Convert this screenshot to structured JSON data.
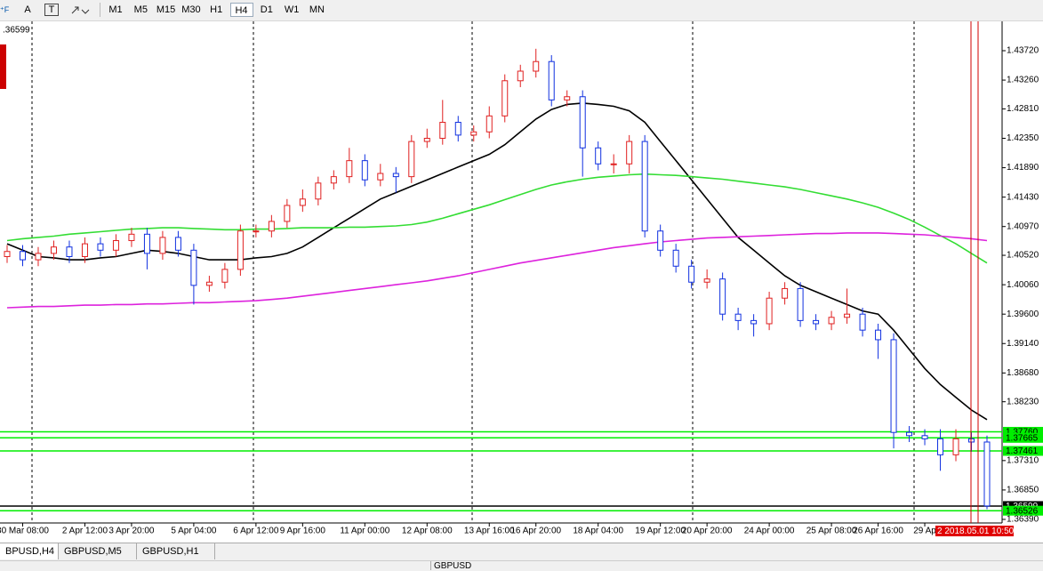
{
  "toolbar": {
    "text_tool": "A",
    "label_tool": "T",
    "periods": [
      "M1",
      "M5",
      "M15",
      "M30",
      "H1",
      "H4",
      "D1",
      "W1",
      "MN"
    ]
  },
  "chart_data": {
    "type": "candlestick",
    "corner_text": ".36599",
    "cursor_time_label": "2 2018.05.01 10:50",
    "up_color": "#e02020",
    "down_color": "#1030e0",
    "ylim": [
      1.36334,
      1.44165
    ],
    "yticks": [
      {
        "value": 1.4372,
        "label": "1.43720"
      },
      {
        "value": 1.4326,
        "label": "1.43260"
      },
      {
        "value": 1.4281,
        "label": "1.42810"
      },
      {
        "value": 1.4235,
        "label": "1.42350"
      },
      {
        "value": 1.4189,
        "label": "1.41890"
      },
      {
        "value": 1.4143,
        "label": "1.41430"
      },
      {
        "value": 1.4097,
        "label": "1.40970"
      },
      {
        "value": 1.4052,
        "label": "1.40520"
      },
      {
        "value": 1.4006,
        "label": "1.40060"
      },
      {
        "value": 1.396,
        "label": "1.39600"
      },
      {
        "value": 1.3914,
        "label": "1.39140"
      },
      {
        "value": 1.3868,
        "label": "1.38680"
      },
      {
        "value": 1.3823,
        "label": "1.38230"
      },
      {
        "value": 1.3731,
        "label": "1.37310"
      },
      {
        "value": 1.3685,
        "label": "1.36850"
      },
      {
        "value": 1.3639,
        "label": "1.36390"
      }
    ],
    "grid": false,
    "categories": [
      null,
      "30 Mar 08:00",
      null,
      null,
      null,
      "2 Apr 12:00",
      null,
      null,
      "3 Apr 20:00",
      null,
      null,
      null,
      "5 Apr 04:00",
      null,
      null,
      null,
      "6 Apr 12:00",
      null,
      null,
      "9 Apr 16:00",
      null,
      null,
      null,
      "11 Apr 00:00",
      null,
      null,
      null,
      "12 Apr 08:00",
      null,
      null,
      null,
      "13 Apr 16:00",
      null,
      null,
      "16 Apr 20:00",
      null,
      null,
      null,
      "18 Apr 04:00",
      null,
      null,
      null,
      "19 Apr 12:00",
      null,
      null,
      "20 Apr 20:00",
      null,
      null,
      null,
      "24 Apr 00:00",
      null,
      null,
      null,
      "25 Apr 08:00",
      null,
      null,
      "26 Apr 16:00",
      null,
      null,
      "29 Ap",
      null,
      null,
      null,
      null
    ],
    "candles": {
      "open": [
        1.405,
        1.4058,
        1.4045,
        1.4055,
        1.4065,
        1.405,
        1.407,
        1.406,
        1.4075,
        1.4085,
        1.4055,
        1.408,
        1.406,
        1.4005,
        1.401,
        1.403,
        1.409,
        1.409,
        1.4105,
        1.413,
        1.414,
        1.4165,
        1.4175,
        1.42,
        1.417,
        1.418,
        1.4175,
        1.423,
        1.4235,
        1.426,
        1.424,
        1.4245,
        1.427,
        1.4325,
        1.434,
        1.4355,
        1.4295,
        1.43,
        1.422,
        1.4195,
        1.4195,
        1.423,
        1.409,
        1.406,
        1.4035,
        1.401,
        1.4015,
        1.396,
        1.395,
        1.3945,
        1.3985,
        1.4,
        1.395,
        1.3945,
        1.3955,
        1.396,
        1.3935,
        1.392,
        1.3775,
        1.377,
        1.3765,
        1.374,
        1.3765,
        1.376
      ],
      "high": [
        1.4068,
        1.4068,
        1.4065,
        1.4075,
        1.4075,
        1.408,
        1.408,
        1.4085,
        1.4095,
        1.4095,
        1.409,
        1.409,
        1.407,
        1.402,
        1.404,
        1.41,
        1.41,
        1.4115,
        1.414,
        1.4155,
        1.4175,
        1.4185,
        1.422,
        1.421,
        1.4195,
        1.419,
        1.424,
        1.425,
        1.4295,
        1.427,
        1.4255,
        1.4285,
        1.4335,
        1.435,
        1.4375,
        1.4365,
        1.431,
        1.431,
        1.423,
        1.421,
        1.424,
        1.424,
        1.41,
        1.407,
        1.4045,
        1.403,
        1.4025,
        1.397,
        1.396,
        1.3995,
        1.401,
        1.401,
        1.396,
        1.3965,
        1.4,
        1.397,
        1.3945,
        1.393,
        1.3785,
        1.378,
        1.378,
        1.378,
        1.3775,
        1.377
      ],
      "low": [
        1.404,
        1.4035,
        1.4035,
        1.4045,
        1.404,
        1.404,
        1.405,
        1.405,
        1.4065,
        1.403,
        1.4045,
        1.405,
        1.3975,
        1.3995,
        1.4,
        1.402,
        1.408,
        1.408,
        1.4095,
        1.412,
        1.413,
        1.4155,
        1.4165,
        1.416,
        1.416,
        1.415,
        1.4165,
        1.422,
        1.4225,
        1.423,
        1.423,
        1.4235,
        1.426,
        1.4315,
        1.433,
        1.4285,
        1.4285,
        1.4175,
        1.4185,
        1.418,
        1.418,
        1.408,
        1.405,
        1.4025,
        1.4,
        1.4,
        1.395,
        1.3935,
        1.3925,
        1.3935,
        1.3975,
        1.394,
        1.3935,
        1.3935,
        1.3945,
        1.3925,
        1.389,
        1.375,
        1.376,
        1.3755,
        1.3715,
        1.373,
        1.3745,
        1.3655
      ],
      "close": [
        1.4058,
        1.4045,
        1.4055,
        1.4065,
        1.405,
        1.407,
        1.406,
        1.4075,
        1.4085,
        1.4055,
        1.408,
        1.406,
        1.4005,
        1.401,
        1.403,
        1.409,
        1.409,
        1.4105,
        1.413,
        1.414,
        1.4165,
        1.4175,
        1.42,
        1.417,
        1.418,
        1.4175,
        1.423,
        1.4235,
        1.426,
        1.424,
        1.4245,
        1.427,
        1.4325,
        1.434,
        1.4355,
        1.4295,
        1.43,
        1.422,
        1.4195,
        1.4195,
        1.423,
        1.409,
        1.406,
        1.4035,
        1.401,
        1.4015,
        1.396,
        1.395,
        1.3945,
        1.3985,
        1.4,
        1.395,
        1.3945,
        1.3955,
        1.396,
        1.3935,
        1.392,
        1.3775,
        1.377,
        1.3765,
        1.374,
        1.3765,
        1.376,
        1.366
      ]
    },
    "series": [
      {
        "color": "#000000",
        "values": [
          1.407,
          1.406,
          1.405,
          1.4048,
          1.4045,
          1.4045,
          1.4048,
          1.405,
          1.4055,
          1.406,
          1.4058,
          1.4055,
          1.405,
          1.4045,
          1.4045,
          1.4045,
          1.4048,
          1.405,
          1.4055,
          1.4065,
          1.408,
          1.4095,
          1.411,
          1.4125,
          1.414,
          1.415,
          1.416,
          1.417,
          1.418,
          1.419,
          1.42,
          1.421,
          1.4225,
          1.4245,
          1.4265,
          1.428,
          1.4288,
          1.429,
          1.4288,
          1.4285,
          1.4278,
          1.426,
          1.423,
          1.42,
          1.417,
          1.414,
          1.411,
          1.408,
          1.406,
          1.404,
          1.402,
          1.4005,
          1.3995,
          1.3985,
          1.3975,
          1.3965,
          1.396,
          1.3935,
          1.3905,
          1.3875,
          1.385,
          1.383,
          1.381,
          1.3795
        ]
      },
      {
        "color": "#33dd33",
        "values": [
          1.4075,
          1.4078,
          1.408,
          1.4082,
          1.4085,
          1.4087,
          1.4089,
          1.4091,
          1.4093,
          1.4094,
          1.4095,
          1.4095,
          1.4094,
          1.4093,
          1.4092,
          1.4092,
          1.4093,
          1.4093,
          1.4094,
          1.4095,
          1.4095,
          1.4095,
          1.4096,
          1.4096,
          1.4097,
          1.4098,
          1.41,
          1.4104,
          1.411,
          1.4117,
          1.4124,
          1.4131,
          1.4139,
          1.4147,
          1.4155,
          1.4162,
          1.4167,
          1.4171,
          1.4174,
          1.4176,
          1.4178,
          1.4179,
          1.4178,
          1.4177,
          1.4175,
          1.4173,
          1.4171,
          1.4168,
          1.4165,
          1.4162,
          1.4159,
          1.4155,
          1.415,
          1.4145,
          1.414,
          1.4134,
          1.4127,
          1.4118,
          1.4108,
          1.4096,
          1.4083,
          1.407,
          1.4055,
          1.404
        ]
      },
      {
        "color": "#dd22dd",
        "values": [
          1.397,
          1.3971,
          1.3972,
          1.3972,
          1.3973,
          1.3974,
          1.3974,
          1.3975,
          1.3975,
          1.3976,
          1.3976,
          1.3977,
          1.3978,
          1.3978,
          1.3979,
          1.398,
          1.3981,
          1.3983,
          1.3985,
          1.3988,
          1.3991,
          1.3994,
          1.3997,
          1.4,
          1.4003,
          1.4006,
          1.4009,
          1.4012,
          1.4016,
          1.402,
          1.4025,
          1.403,
          1.4035,
          1.404,
          1.4044,
          1.4048,
          1.4052,
          1.4056,
          1.406,
          1.4064,
          1.4067,
          1.407,
          1.4073,
          1.4075,
          1.4077,
          1.4079,
          1.408,
          1.4081,
          1.4082,
          1.4083,
          1.4084,
          1.4085,
          1.4086,
          1.4086,
          1.4087,
          1.4087,
          1.4087,
          1.4086,
          1.4085,
          1.4084,
          1.4082,
          1.408,
          1.4078,
          1.4075
        ]
      }
    ],
    "levels": [
      {
        "value": 1.3776,
        "label": "1.37760",
        "color": "#00ee00",
        "text_color": "#000000"
      },
      {
        "value": 1.37665,
        "label": "1.37665",
        "color": "#00ee00",
        "text_color": "#000000"
      },
      {
        "value": 1.37461,
        "label": "1.37461",
        "color": "#00ee00",
        "text_color": "#000000"
      },
      {
        "value": 1.36599,
        "label": "1.36599",
        "color": "#000000",
        "text_color": "#ffffff"
      },
      {
        "value": 1.36526,
        "label": "1.36526",
        "color": "#00ee00",
        "text_color": "#000000"
      }
    ]
  },
  "tabs": [
    "BPUSD,H4",
    "GBPUSD,M5",
    "GBPUSD,H1"
  ],
  "status": {
    "symbol": "GBPUSD"
  }
}
